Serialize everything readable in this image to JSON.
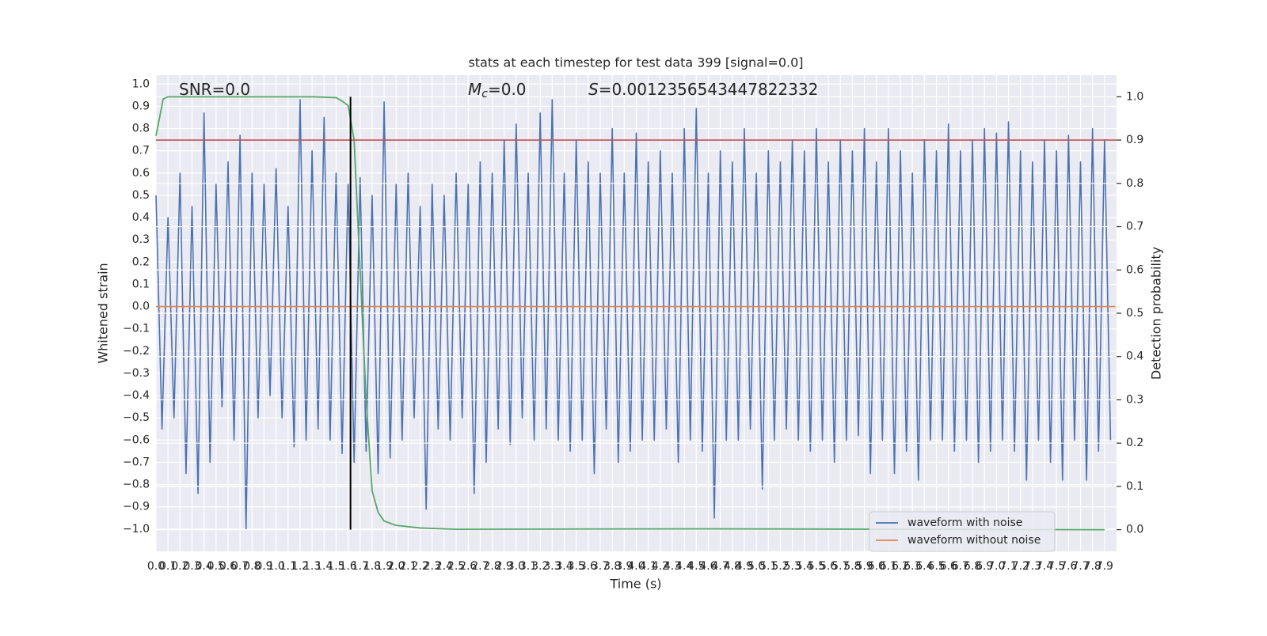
{
  "chart_data": {
    "type": "line",
    "title": "stats at each timestep for test data 399 [signal=0.0]",
    "xlabel": "Time (s)",
    "ylabel": "Whitened strain",
    "y2label": "Detection probability",
    "annotations": [
      {
        "text": "SNR=0.0"
      },
      {
        "symbol": "M",
        "sub": "c",
        "text": "=0.0"
      },
      {
        "symbol": "S",
        "text": "=0.0012356543447822332"
      }
    ],
    "xlim": [
      0,
      8.0
    ],
    "ylim": [
      -1.1,
      1.04
    ],
    "y2lim": [
      -0.05,
      1.05
    ],
    "xticks": [
      {
        "value": 0,
        "label": "0.0"
      },
      0.1,
      0.2,
      0.3,
      0.4,
      0.5,
      0.6,
      0.7,
      0.8,
      0.9,
      {
        "value": 1,
        "label": "1.0"
      },
      1.1,
      1.2,
      1.3,
      1.4,
      1.5,
      1.6,
      1.7,
      1.8,
      1.9,
      {
        "value": 2,
        "label": "2.0"
      },
      2.1,
      2.2,
      2.3,
      2.4,
      2.5,
      2.6,
      2.7,
      2.8,
      2.9,
      {
        "value": 3,
        "label": "3.0"
      },
      3.1,
      3.2,
      3.3,
      3.4,
      3.5,
      3.6,
      3.7,
      3.8,
      3.9,
      {
        "value": 4,
        "label": "4.0"
      },
      4.1,
      4.2,
      4.3,
      4.4,
      4.5,
      4.6,
      4.7,
      4.8,
      4.9,
      {
        "value": 5,
        "label": "5.0"
      },
      5.1,
      5.2,
      5.3,
      5.4,
      5.5,
      5.6,
      5.7,
      5.8,
      5.9,
      {
        "value": 6,
        "label": "6.0"
      },
      6.1,
      6.2,
      6.3,
      6.4,
      6.5,
      6.6,
      6.7,
      6.8,
      6.9,
      {
        "value": 7,
        "label": "7.0"
      },
      7.1,
      7.2,
      7.3,
      7.4,
      7.5,
      7.6,
      7.7,
      7.8,
      7.9
    ],
    "yticks": [
      {
        "value": -1,
        "label": "−1.0"
      },
      {
        "value": -0.9,
        "label": "−0.9"
      },
      {
        "value": -0.8,
        "label": "−0.8"
      },
      {
        "value": -0.7,
        "label": "−0.7"
      },
      {
        "value": -0.6,
        "label": "−0.6"
      },
      {
        "value": -0.5,
        "label": "−0.5"
      },
      {
        "value": -0.4,
        "label": "−0.4"
      },
      {
        "value": -0.3,
        "label": "−0.3"
      },
      {
        "value": -0.2,
        "label": "−0.2"
      },
      {
        "value": -0.1,
        "label": "−0.1"
      },
      {
        "value": 0,
        "label": "0.0"
      },
      0.1,
      0.2,
      0.3,
      0.4,
      0.5,
      0.6,
      0.7,
      0.8,
      0.9,
      {
        "value": 1,
        "label": "1.0"
      }
    ],
    "y2ticks": [
      {
        "value": 0,
        "label": "0.0"
      },
      0.1,
      0.2,
      0.3,
      0.4,
      0.5,
      0.6,
      0.7,
      0.8,
      0.9,
      {
        "value": 1,
        "label": "1.0"
      }
    ],
    "grid": true,
    "legend": "lower right",
    "threshold": {
      "value": 0.9,
      "color": "#c44e52",
      "axis": "y2"
    },
    "vline": {
      "x": 1.62,
      "color": "#000000"
    },
    "series": [
      {
        "name": "waveform with noise",
        "color": "#4c72b0",
        "x": [
          0,
          0.05,
          0.1,
          0.15,
          0.2,
          0.25,
          0.3,
          0.35,
          0.4,
          0.45,
          0.5,
          0.55,
          0.6,
          0.65,
          0.7,
          0.75,
          0.8,
          0.85,
          0.9,
          0.95,
          1,
          1.05,
          1.1,
          1.15,
          1.2,
          1.25,
          1.3,
          1.35,
          1.4,
          1.45,
          1.5,
          1.55,
          1.6,
          1.65,
          1.7,
          1.75,
          1.8,
          1.85,
          1.9,
          1.95,
          2,
          2.05,
          2.1,
          2.15,
          2.2,
          2.25,
          2.3,
          2.35,
          2.4,
          2.45,
          2.5,
          2.55,
          2.6,
          2.65,
          2.7,
          2.75,
          2.8,
          2.85,
          2.9,
          2.95,
          3,
          3.05,
          3.1,
          3.15,
          3.2,
          3.25,
          3.3,
          3.35,
          3.4,
          3.45,
          3.5,
          3.55,
          3.6,
          3.65,
          3.7,
          3.75,
          3.8,
          3.85,
          3.9,
          3.95,
          4,
          4.05,
          4.1,
          4.15,
          4.2,
          4.25,
          4.3,
          4.35,
          4.4,
          4.45,
          4.5,
          4.55,
          4.6,
          4.65,
          4.7,
          4.75,
          4.8,
          4.85,
          4.9,
          4.95,
          5,
          5.05,
          5.1,
          5.15,
          5.2,
          5.25,
          5.3,
          5.35,
          5.4,
          5.45,
          5.5,
          5.55,
          5.6,
          5.65,
          5.7,
          5.75,
          5.8,
          5.85,
          5.9,
          5.95,
          6,
          6.05,
          6.1,
          6.15,
          6.2,
          6.25,
          6.3,
          6.35,
          6.4,
          6.45,
          6.5,
          6.55,
          6.6,
          6.65,
          6.7,
          6.75,
          6.8,
          6.85,
          6.9,
          6.95,
          7,
          7.05,
          7.1,
          7.15,
          7.2,
          7.25,
          7.3,
          7.35,
          7.4,
          7.45,
          7.5,
          7.55,
          7.6,
          7.65,
          7.7,
          7.75,
          7.8,
          7.85,
          7.9,
          7.95
        ],
        "values": [
          0.5,
          -0.55,
          0.4,
          -0.5,
          0.6,
          -0.75,
          0.45,
          -0.84,
          0.87,
          -0.7,
          0.55,
          -0.45,
          0.65,
          -0.6,
          0.77,
          -1.0,
          0.6,
          -0.5,
          0.55,
          -0.4,
          0.62,
          -0.5,
          0.45,
          -0.63,
          0.93,
          -0.6,
          0.7,
          -0.55,
          0.85,
          -0.6,
          0.6,
          -0.66,
          0.55,
          -0.7,
          0.58,
          -0.65,
          0.5,
          -0.75,
          0.92,
          -0.68,
          0.55,
          -0.6,
          0.6,
          -0.5,
          0.45,
          -0.91,
          0.55,
          -0.55,
          0.5,
          -0.6,
          0.6,
          -0.5,
          0.55,
          -0.84,
          0.65,
          -0.7,
          0.6,
          -0.55,
          0.75,
          -0.62,
          0.82,
          -0.5,
          0.6,
          -0.6,
          0.87,
          -0.55,
          0.93,
          -0.6,
          0.6,
          -0.65,
          0.75,
          -0.6,
          0.65,
          -0.75,
          0.6,
          -0.55,
          0.8,
          -0.7,
          0.6,
          -0.65,
          0.78,
          -0.6,
          0.65,
          -0.6,
          0.7,
          -0.55,
          0.6,
          -0.7,
          0.8,
          -0.6,
          0.89,
          -0.65,
          0.6,
          -0.95,
          0.7,
          -0.6,
          0.65,
          -0.6,
          0.8,
          -0.55,
          0.6,
          -0.82,
          0.7,
          -0.6,
          0.65,
          -0.55,
          0.75,
          -0.6,
          0.7,
          -0.65,
          0.8,
          -0.6,
          0.65,
          -0.7,
          0.75,
          -0.6,
          0.7,
          -0.58,
          0.8,
          -0.75,
          0.65,
          -0.6,
          0.8,
          -0.75,
          0.7,
          -0.65,
          0.6,
          -0.78,
          0.75,
          -0.6,
          0.7,
          -0.6,
          0.82,
          -0.65,
          0.7,
          -0.6,
          0.75,
          -0.7,
          0.8,
          -0.65,
          0.78,
          -0.6,
          0.83,
          -0.65,
          0.7,
          -0.78,
          0.65,
          -0.6,
          0.75,
          -0.7,
          0.7,
          -0.78,
          0.77,
          -0.6,
          0.65,
          -0.78,
          0.8,
          -0.65,
          0.75,
          -0.6
        ]
      },
      {
        "name": "waveform without noise",
        "color": "#dd8452",
        "x": [
          0,
          7.99
        ],
        "values": [
          0,
          0
        ]
      },
      {
        "color": "#55a868",
        "axis": "y2",
        "x": [
          0,
          0.06,
          0.1,
          0.2,
          0.5,
          1.0,
          1.3,
          1.5,
          1.55,
          1.6,
          1.65,
          1.7,
          1.75,
          1.8,
          1.85,
          1.9,
          2.0,
          2.2,
          2.5,
          4.6,
          7.9
        ],
        "values": [
          0.91,
          0.995,
          1.0,
          1.0,
          1.0,
          1.0,
          1.0,
          0.998,
          0.99,
          0.98,
          0.9,
          0.6,
          0.3,
          0.09,
          0.04,
          0.02,
          0.01,
          0.004,
          0.001,
          0.002,
          0.0
        ]
      }
    ]
  }
}
